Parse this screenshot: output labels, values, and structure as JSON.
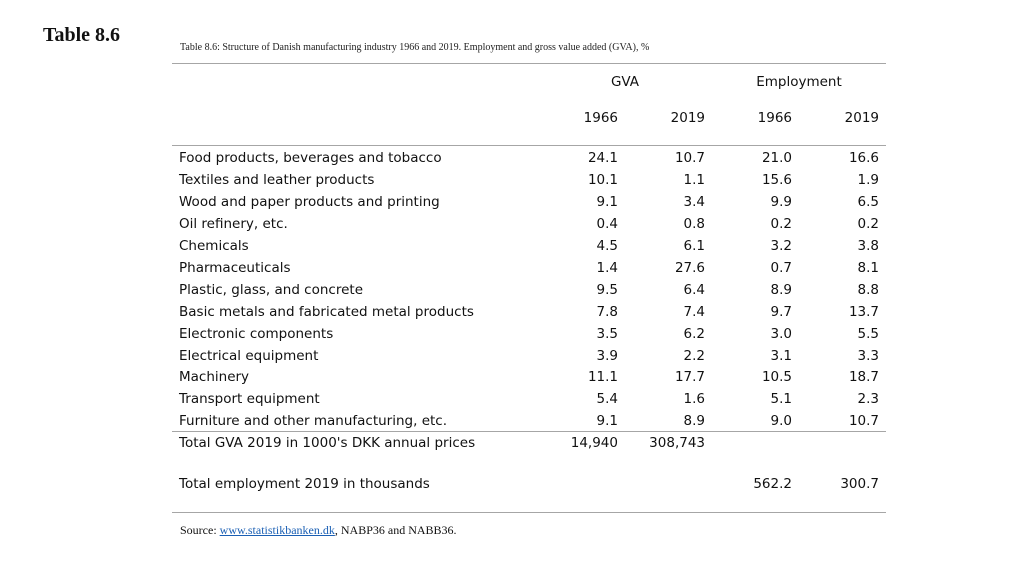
{
  "slide_title": "Table 8.6",
  "caption": "Table 8.6: Structure of Danish manufacturing industry 1966 and 2019. Employment and gross value added (GVA), %",
  "header": {
    "group_gva": "GVA",
    "group_employment": "Employment",
    "years": [
      "1966",
      "2019",
      "1966",
      "2019"
    ]
  },
  "rows": [
    {
      "label": "Food products, beverages and tobacco",
      "values": [
        "24.1",
        "10.7",
        "21.0",
        "16.6"
      ]
    },
    {
      "label": "Textiles and leather products",
      "values": [
        "10.1",
        "1.1",
        "15.6",
        "1.9"
      ]
    },
    {
      "label": "Wood and paper products and printing",
      "values": [
        "9.1",
        "3.4",
        "9.9",
        "6.5"
      ]
    },
    {
      "label": "Oil refinery, etc.",
      "values": [
        "0.4",
        "0.8",
        "0.2",
        "0.2"
      ]
    },
    {
      "label": "Chemicals",
      "values": [
        "4.5",
        "6.1",
        "3.2",
        "3.8"
      ]
    },
    {
      "label": "Pharmaceuticals",
      "values": [
        "1.4",
        "27.6",
        "0.7",
        "8.1"
      ]
    },
    {
      "label": "Plastic, glass, and concrete",
      "values": [
        "9.5",
        "6.4",
        "8.9",
        "8.8"
      ]
    },
    {
      "label": "Basic metals and fabricated metal products",
      "values": [
        "7.8",
        "7.4",
        "9.7",
        "13.7"
      ]
    },
    {
      "label": "Electronic components",
      "values": [
        "3.5",
        "6.2",
        "3.0",
        "5.5"
      ]
    },
    {
      "label": "Electrical equipment",
      "values": [
        "3.9",
        "2.2",
        "3.1",
        "3.3"
      ]
    },
    {
      "label": "Machinery",
      "values": [
        "11.1",
        "17.7",
        "10.5",
        "18.7"
      ]
    },
    {
      "label": "Transport equipment",
      "values": [
        "5.4",
        "1.6",
        "5.1",
        "2.3"
      ]
    },
    {
      "label": "Furniture and other manufacturing, etc.",
      "values": [
        "9.1",
        "8.9",
        "9.0",
        "10.7"
      ]
    }
  ],
  "totals": {
    "gva": {
      "label": "Total GVA 2019 in 1000's DKK annual prices",
      "values": [
        "14,940",
        "308,743",
        "",
        ""
      ]
    },
    "employment": {
      "label": "Total employment 2019 in thousands",
      "values": [
        "",
        "",
        "562.2",
        "300.7"
      ]
    }
  },
  "source": {
    "prefix": "Source: ",
    "link_text": "www.statistikbanken.dk",
    "suffix": ", NABP36 and NABB36."
  }
}
